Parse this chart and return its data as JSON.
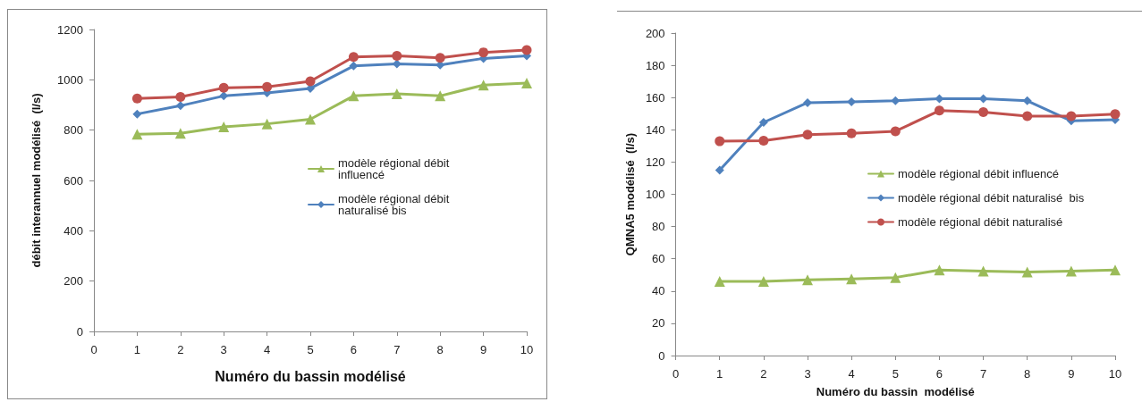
{
  "chart_data": [
    {
      "type": "line",
      "xlabel": "Numéro du bassin modélisé",
      "ylabel": "débit interannuel modélisé  (l/s)",
      "x": [
        1,
        2,
        3,
        4,
        5,
        6,
        7,
        8,
        9,
        10
      ],
      "xlim": [
        0,
        10
      ],
      "xticks": [
        0,
        1,
        2,
        3,
        4,
        5,
        6,
        7,
        8,
        9,
        10
      ],
      "ylim": [
        0,
        1200
      ],
      "yticks": [
        0,
        200,
        400,
        600,
        800,
        1000,
        1200
      ],
      "grid": false,
      "legend": "right",
      "series": [
        {
          "name": "modèle régional débit influencé",
          "color": "#9bbb59",
          "marker": "triangle",
          "values": [
            784,
            787,
            813,
            825,
            843,
            936,
            944,
            936,
            979,
            987
          ]
        },
        {
          "name": "modèle régional débit naturalisé bis",
          "color": "#4f81bd",
          "marker": "diamond",
          "values": [
            864,
            897,
            936,
            948,
            966,
            1055,
            1063,
            1059,
            1085,
            1095
          ]
        },
        {
          "color": "#c0504d",
          "marker": "circle",
          "values": [
            926,
            932,
            968,
            972,
            994,
            1091,
            1095,
            1087,
            1109,
            1118
          ]
        }
      ]
    },
    {
      "type": "line",
      "xlabel": "Numéro du bassin  modélisé",
      "ylabel": "QMNA5 modélisé  (l/s)",
      "x": [
        1,
        2,
        3,
        4,
        5,
        6,
        7,
        8,
        9,
        10
      ],
      "xlim": [
        0,
        10
      ],
      "xticks": [
        0,
        1,
        2,
        3,
        4,
        5,
        6,
        7,
        8,
        9,
        10
      ],
      "ylim": [
        0,
        200
      ],
      "yticks": [
        0,
        20,
        40,
        60,
        80,
        100,
        120,
        140,
        160,
        180,
        200
      ],
      "grid": false,
      "legend": "right",
      "series": [
        {
          "name": "modèle régional débit influencé",
          "color": "#9bbb59",
          "marker": "triangle",
          "values": [
            46,
            46,
            46.9,
            47.5,
            48.4,
            53,
            52.4,
            51.8,
            52.4,
            53
          ]
        },
        {
          "name": "modèle régional débit naturalisé  bis",
          "color": "#4f81bd",
          "marker": "diamond",
          "values": [
            115,
            144.6,
            156.8,
            157.4,
            158,
            159.3,
            159.3,
            158,
            145.5,
            146.3
          ]
        },
        {
          "name": "modèle régional débit naturalisé",
          "color": "#c0504d",
          "marker": "circle",
          "values": [
            132.9,
            133.3,
            137,
            137.8,
            139.1,
            151.9,
            151,
            148.5,
            148.5,
            149.7
          ]
        }
      ]
    }
  ]
}
